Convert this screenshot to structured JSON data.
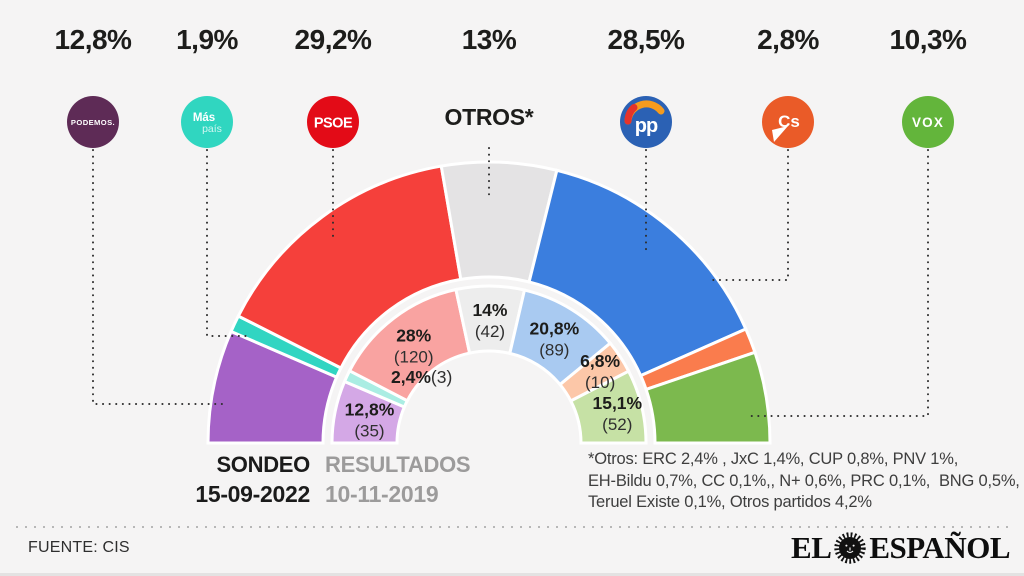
{
  "header": {
    "otros_label": "OTROS*"
  },
  "parties": [
    {
      "id": "podemos",
      "name": "Podemos",
      "logo": "PODEMOS.",
      "sondeo": "12,8%",
      "resultado_pct": "12,8%",
      "resultado_seats": "(35)",
      "color": "#a562c7",
      "color_light": "#d4a8e6",
      "logo_bg": "#5e2b56"
    },
    {
      "id": "mas-pais",
      "name": "Más País",
      "logo_line1": "Más",
      "logo_line2": "país",
      "sondeo": "1,9%",
      "resultado_pct": "2,4%",
      "resultado_seats": "(3)",
      "color": "#31d5c2",
      "color_light": "#aaede3",
      "logo_bg": "#30d6c0"
    },
    {
      "id": "psoe",
      "name": "PSOE",
      "logo": "PSOE",
      "sondeo": "29,2%",
      "resultado_pct": "28%",
      "resultado_seats": "(120)",
      "color": "#f5403b",
      "color_light": "#f9a3a1",
      "logo_bg": "#e30b17"
    },
    {
      "id": "otros",
      "name": "Otros",
      "logo": "OTROS*",
      "sondeo": "13%",
      "resultado_pct": "14%",
      "resultado_seats": "(42)",
      "color": "#e4e3e4",
      "color_light": "#ededed",
      "logo_bg": "#e4e3e4"
    },
    {
      "id": "pp",
      "name": "PP",
      "logo": "pp",
      "sondeo": "28,5%",
      "resultado_pct": "20,8%",
      "resultado_seats": "(89)",
      "color": "#3b7ede",
      "color_light": "#a9caf1",
      "logo_bg": "#2b61b4"
    },
    {
      "id": "cs",
      "name": "Cs",
      "logo": "Cs",
      "sondeo": "2,8%",
      "resultado_pct": "6,8%",
      "resultado_seats": "(10)",
      "color": "#fa7c4d",
      "color_light": "#fcc7a8",
      "logo_bg": "#ea5b28"
    },
    {
      "id": "vox",
      "name": "VOX",
      "logo": "VOX",
      "sondeo": "10,3%",
      "resultado_pct": "15,1%",
      "resultado_seats": "(52)",
      "color": "#7cb94e",
      "color_light": "#c6e1a5",
      "logo_bg": "#63b53b"
    }
  ],
  "chart_data": {
    "type": "half-donut",
    "categories": [
      "Podemos",
      "Más País",
      "PSOE",
      "Otros",
      "PP",
      "Cs",
      "VOX"
    ],
    "series": [
      {
        "name": "Sondeo 15-09-2022",
        "ring": "outer",
        "values": [
          12.8,
          1.9,
          29.2,
          13.0,
          28.5,
          2.8,
          10.3
        ]
      },
      {
        "name": "Resultados 10-11-2019",
        "ring": "inner",
        "values": [
          12.8,
          2.4,
          28.0,
          14.0,
          20.8,
          6.8,
          15.1
        ],
        "seats": [
          35,
          3,
          120,
          42,
          89,
          10,
          52
        ]
      }
    ],
    "colors": {
      "outer": [
        "#a562c7",
        "#31d5c2",
        "#f5403b",
        "#e4e3e4",
        "#3b7ede",
        "#fa7c4d",
        "#7cb94e"
      ],
      "inner": [
        "#d4a8e6",
        "#aaede3",
        "#f9a3a1",
        "#ededed",
        "#a9caf1",
        "#fcc7a8",
        "#c6e1a5"
      ]
    },
    "layout_hint": "semicircle spanning 180 degrees, flat base, labels with seats inside inner ring"
  },
  "legend": {
    "sondeo_label": "SONDEO",
    "sondeo_date": "15-09-2022",
    "resultados_label": "RESULTADOS",
    "resultados_date": "10-11-2019"
  },
  "footnote": {
    "line1": "*Otros: ERC 2,4% , JxC 1,4%, CUP 0,8%, PNV 1%,",
    "line2": "EH-Bildu 0,7%, CC 0,1%,, N+ 0,6%, PRC 0,1%,  BNG 0,5%,",
    "line3": "Teruel Existe 0,1%, Otros partidos 4,2%"
  },
  "footer": {
    "source": "FUENTE: CIS",
    "brand_el": "EL",
    "brand_espanol": "ESPAÑOL"
  }
}
